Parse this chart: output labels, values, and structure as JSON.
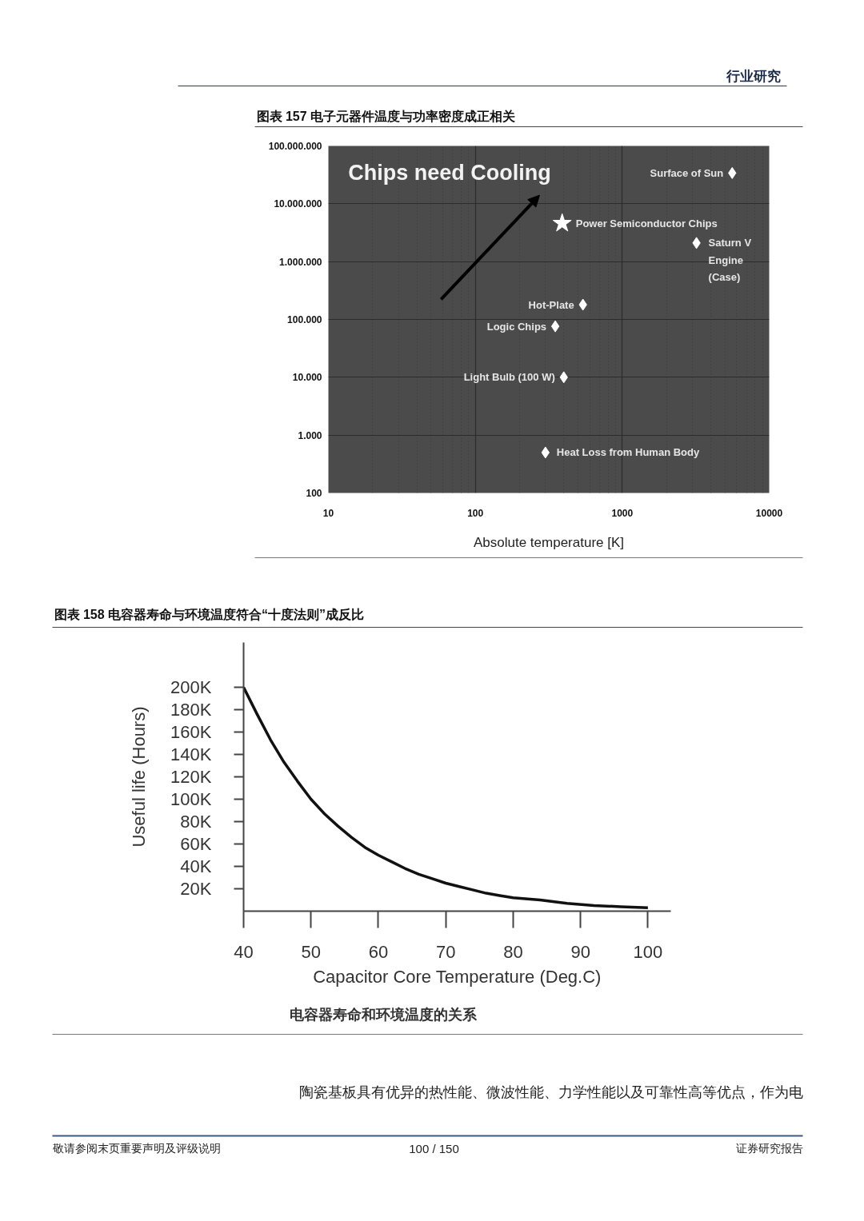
{
  "chart_data": [
    {
      "type": "scatter",
      "title": "图表 157 电子元器件温度与功率密度成正相关",
      "xlabel": "Absolute temperature [K]",
      "annotations": [
        "行业研究",
        "Chips need Cooling"
      ],
      "log": "xy",
      "xlim": [
        10,
        10000
      ],
      "ylim": [
        100,
        100000000
      ],
      "xticks": [
        10,
        100,
        1000,
        10000
      ],
      "yticks": [
        100,
        {
          "value": 1000,
          "label": "1.000"
        },
        {
          "value": 10000,
          "label": "10.000"
        },
        {
          "value": 100000,
          "label": "100.000"
        },
        {
          "value": 1000000,
          "label": "1.000.000"
        },
        {
          "value": 10000000,
          "label": "10.000.000"
        },
        {
          "value": 100000000,
          "label": "100.000.000"
        }
      ],
      "grid": true,
      "marker": "diamond",
      "series": [
        {
          "name": "Surface of Sun",
          "x": [
            5600
          ],
          "values": [
            34000000
          ],
          "color": "#ffffff"
        },
        {
          "name": "Power Semiconductor Chips",
          "x": [
            390
          ],
          "values": [
            4600000
          ],
          "color": "#ffffff",
          "marker": "star"
        },
        {
          "name": "Saturn V Engine (Case)",
          "x": [
            3200
          ],
          "values": [
            2100000
          ],
          "color": "#ffffff"
        },
        {
          "name": "Hot-Plate",
          "x": [
            540
          ],
          "values": [
            180000
          ],
          "color": "#ffffff"
        },
        {
          "name": "Logic Chips",
          "x": [
            350
          ],
          "values": [
            76000
          ],
          "color": "#ffffff"
        },
        {
          "name": "Light Bulb (100 W)",
          "x": [
            400
          ],
          "values": [
            10000
          ],
          "color": "#ffffff"
        },
        {
          "name": "Heat Loss from Human Body",
          "x": [
            300
          ],
          "values": [
            500
          ],
          "color": "#ffffff"
        }
      ]
    },
    {
      "type": "line",
      "title": "图表 158 电容器寿命与环境温度符合“十度法则”成反比",
      "xlabel": "Capacitor Core Temperature (Deg.C)",
      "ylabel": "Useful life (Hours)",
      "annotations": [
        "电容器寿命和环境温度的关系",
        "陶瓷基板具有优异的热性能、微波性能、力学性能以及可靠性高等优点，作为电",
        "敬请参阅末页重要声明及评级说明",
        "100 / 150",
        "证券研究报告"
      ],
      "xlim": [
        40,
        103.4
      ],
      "ylim": [
        0,
        240000
      ],
      "xticks": [
        40,
        50,
        60,
        70,
        80,
        90,
        100
      ],
      "yticks": [
        {
          "value": 20000,
          "label": "20K"
        },
        {
          "value": 40000,
          "label": "40K"
        },
        {
          "value": 60000,
          "label": "60K"
        },
        {
          "value": 80000,
          "label": "80K"
        },
        {
          "value": 100000,
          "label": "100K"
        },
        {
          "value": 120000,
          "label": "120K"
        },
        {
          "value": 140000,
          "label": "140K"
        },
        {
          "value": 160000,
          "label": "160K"
        },
        {
          "value": 180000,
          "label": "180K"
        },
        {
          "value": 200000,
          "label": "200K"
        }
      ],
      "line_style": "solid",
      "color": "#111111",
      "x": [
        40,
        42,
        44,
        46,
        48,
        50,
        52,
        54,
        56,
        58,
        60,
        62,
        64,
        66,
        68,
        70,
        72,
        74,
        76,
        78,
        80,
        84,
        88,
        92,
        96,
        100
      ],
      "values": [
        200000,
        176000,
        153000,
        133000,
        116000,
        100000,
        87000,
        76000,
        66000,
        57000,
        50000,
        44000,
        38000,
        33000,
        29000,
        25000,
        22000,
        19000,
        16000,
        14000,
        12000,
        10000,
        7000,
        5000,
        4000,
        3000
      ]
    }
  ]
}
